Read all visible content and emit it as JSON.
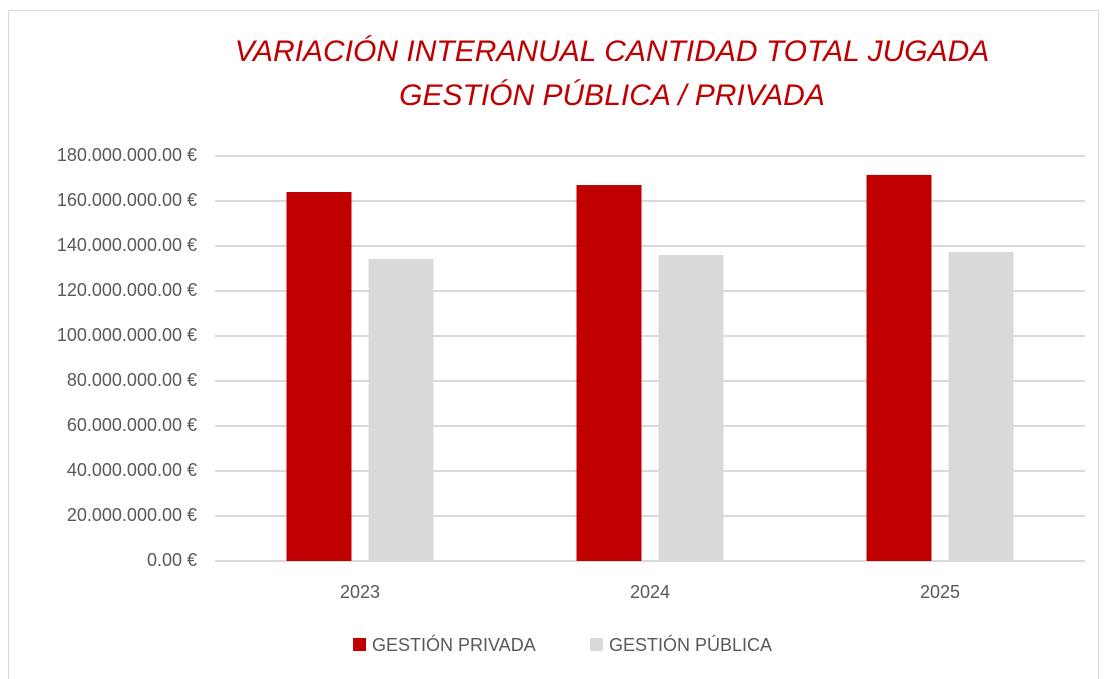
{
  "chart_data": {
    "type": "bar",
    "title": [
      "VARIACIÓN INTERANUAL CANTIDAD TOTAL JUGADA",
      "GESTIÓN PÚBLICA / PRIVADA"
    ],
    "categories": [
      "2023",
      "2024",
      "2025"
    ],
    "series": [
      {
        "name": "GESTIÓN PRIVADA",
        "color": "#c00000",
        "values": [
          164000000,
          167100000,
          171600000
        ]
      },
      {
        "name": "GESTIÓN PÚBLICA",
        "color": "#d9d9d9",
        "values": [
          134200000,
          136000000,
          137300000
        ]
      }
    ],
    "ylim": [
      0,
      180000000
    ],
    "yticks": [
      {
        "value": 0,
        "label": "0.00 €"
      },
      {
        "value": 20000000,
        "label": "20.000.000.00 €"
      },
      {
        "value": 40000000,
        "label": "40.000.000.00 €"
      },
      {
        "value": 60000000,
        "label": "60.000.000.00 €"
      },
      {
        "value": 80000000,
        "label": "80.000.000.00 €"
      },
      {
        "value": 100000000,
        "label": "100.000.000.00 €"
      },
      {
        "value": 120000000,
        "label": "120.000.000.00 €"
      },
      {
        "value": 140000000,
        "label": "140.000.000.00 €"
      },
      {
        "value": 160000000,
        "label": "160.000.000.00 €"
      },
      {
        "value": 180000000,
        "label": "180.000.000.00 €"
      }
    ],
    "grid": true,
    "legend": "bottom"
  }
}
